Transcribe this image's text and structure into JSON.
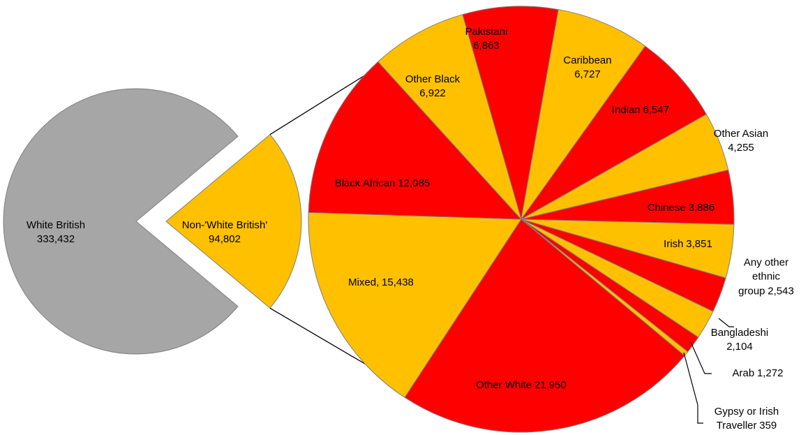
{
  "chart_data": [
    {
      "type": "pie",
      "categories": [
        "White British",
        "Non-'White British'"
      ],
      "values": [
        333432,
        94802
      ],
      "value_labels": [
        "333,432",
        "94,802"
      ],
      "colors": [
        "#a6a6a6",
        "#ffc000"
      ]
    },
    {
      "type": "pie",
      "categories": [
        "Pakistani",
        "Caribbean",
        "Indian",
        "Other Asian",
        "Chinese",
        "Irish",
        "Any other ethnic group",
        "Bangladeshi",
        "Arab",
        "Gypsy or Irish Traveller",
        "Other White",
        "Mixed,",
        "Black African",
        "Other Black"
      ],
      "values": [
        6863,
        6727,
        6547,
        4255,
        3886,
        3851,
        2543,
        2104,
        1272,
        359,
        21950,
        15438,
        12085,
        6922
      ],
      "value_labels": [
        "6,863",
        "6,727",
        "6,547",
        "4,255",
        "3,886",
        "3,851",
        "2,543",
        "2,104",
        "1,272",
        "359",
        "21,950",
        "15,438",
        "12,085",
        "6,922"
      ],
      "colors": [
        "#ff0000",
        "#ffc000",
        "#ff0000",
        "#ffc000",
        "#ff0000",
        "#ffc000",
        "#ff0000",
        "#ffc000",
        "#ff0000",
        "#ffc000",
        "#ff0000",
        "#ffc000",
        "#ff0000",
        "#ffc000"
      ]
    }
  ]
}
